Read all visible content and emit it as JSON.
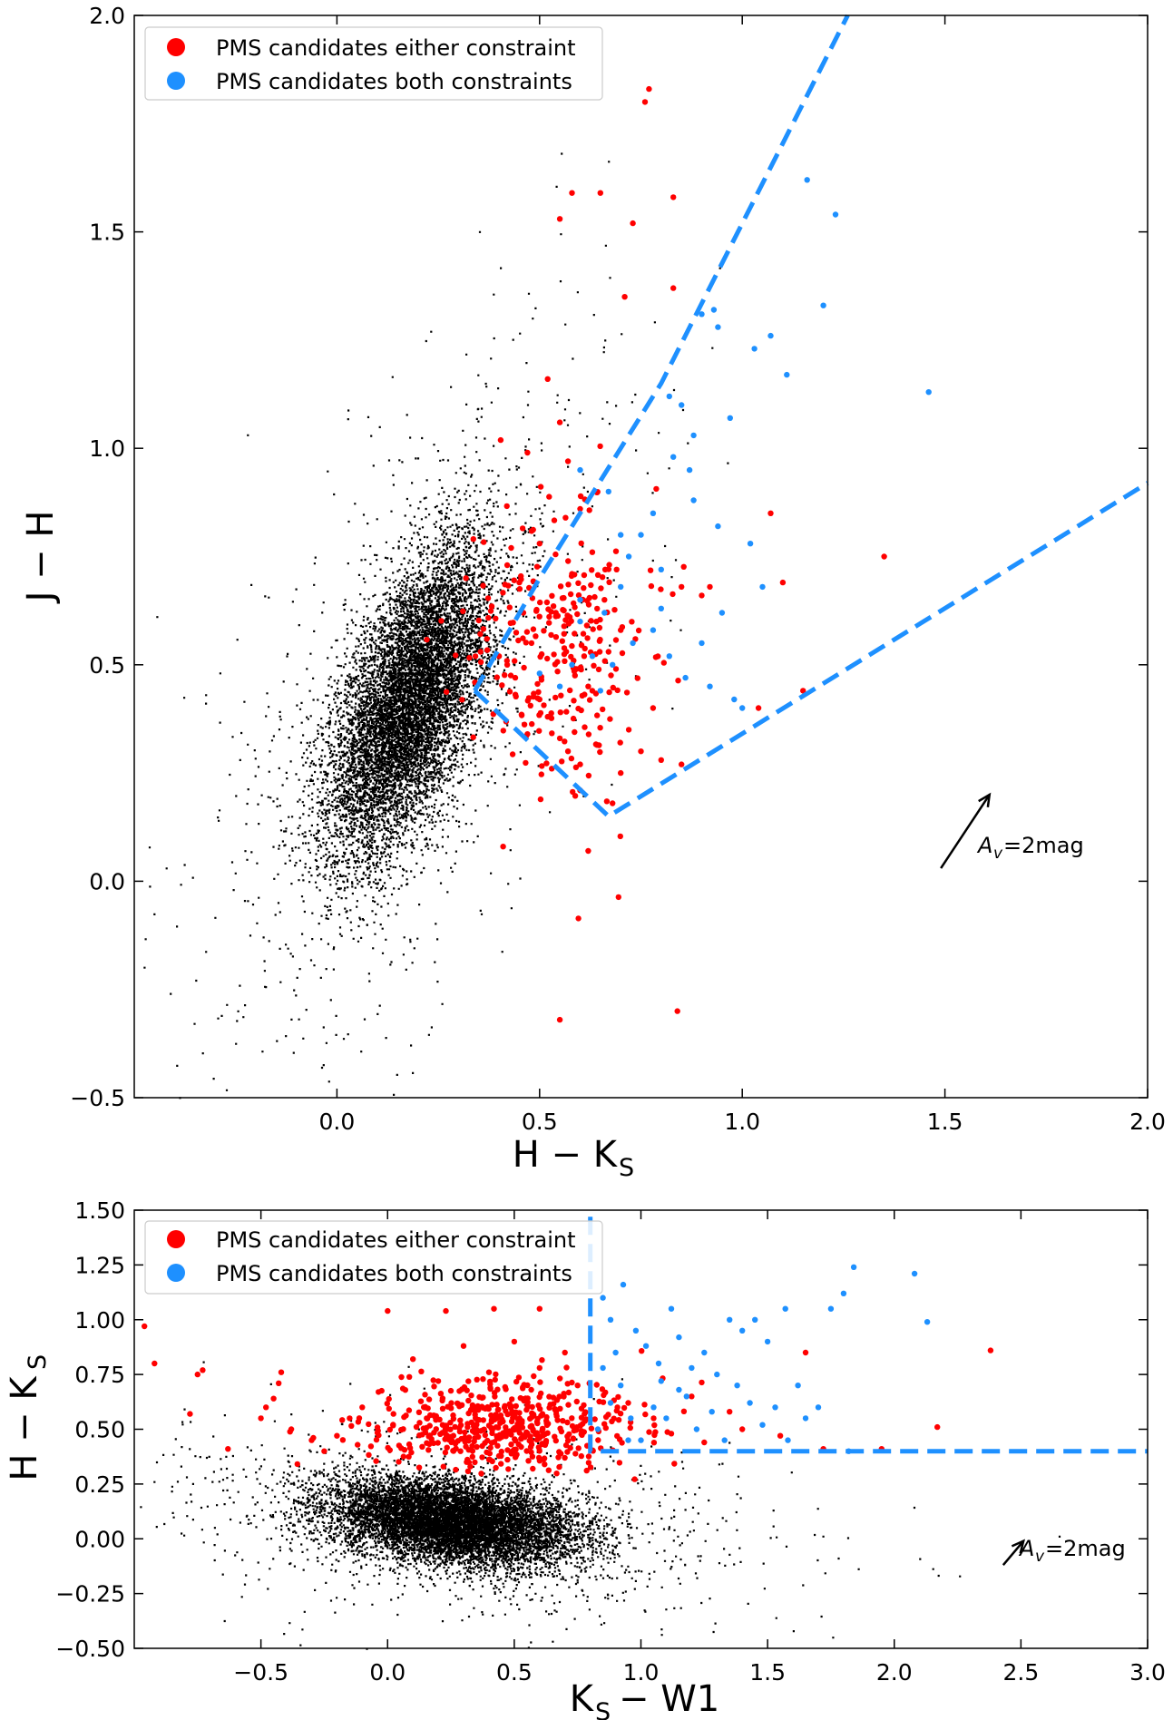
{
  "colors": {
    "background_points": "#000000",
    "either_constraint": "#ff0000",
    "both_constraints": "#1e90ff",
    "boundary": "#1e90ff",
    "axis": "#000000"
  },
  "chart_data": [
    {
      "type": "scatter",
      "id": "top",
      "xlabel": "H − K",
      "xlabel_sub": "S",
      "ylabel": "J − H",
      "ylabel_sub": "",
      "xlim": [
        -0.5,
        2.0
      ],
      "ylim": [
        -0.5,
        2.0
      ],
      "xticks": [
        0.0,
        0.5,
        1.0,
        1.5,
        2.0
      ],
      "xtick_labels": [
        "0.0",
        "0.5",
        "1.0",
        "1.5",
        "2.0"
      ],
      "yticks": [
        -0.5,
        0.0,
        0.5,
        1.0,
        1.5,
        2.0
      ],
      "ytick_labels": [
        "−0.5",
        "0.0",
        "0.5",
        "1.0",
        "1.5",
        "2.0"
      ],
      "legend": {
        "position": "top-left",
        "entries": [
          {
            "label": "PMS candidates either constraint",
            "color": "#ff0000"
          },
          {
            "label": "PMS candidates both constraints",
            "color": "#1e90ff"
          }
        ]
      },
      "background_cloud": {
        "center": [
          0.18,
          0.42
        ],
        "spread": [
          0.1,
          0.18
        ],
        "correlation": 0.6,
        "count": 9000,
        "sparse_count": 900
      },
      "series": [
        {
          "name": "PMS candidates either constraint",
          "color": "#ff0000",
          "points": [
            [
              0.37,
              0.56
            ],
            [
              0.4,
              0.52
            ],
            [
              0.42,
              0.5
            ],
            [
              0.44,
              0.47
            ],
            [
              0.46,
              0.62
            ],
            [
              0.48,
              0.55
            ],
            [
              0.5,
              0.42
            ],
            [
              0.52,
              0.38
            ],
            [
              0.55,
              0.33
            ],
            [
              0.57,
              0.3
            ],
            [
              0.6,
              0.27
            ],
            [
              0.62,
              0.45
            ],
            [
              0.64,
              0.6
            ],
            [
              0.66,
              0.65
            ],
            [
              0.69,
              0.72
            ],
            [
              0.7,
              0.58
            ],
            [
              0.72,
              0.35
            ],
            [
              0.75,
              0.3
            ],
            [
              0.78,
              0.4
            ],
            [
              0.8,
              0.28
            ],
            [
              0.85,
              0.68
            ],
            [
              0.9,
              0.66
            ],
            [
              0.92,
              0.68
            ],
            [
              1.04,
              0.4
            ],
            [
              1.07,
              0.85
            ],
            [
              1.1,
              0.69
            ],
            [
              1.15,
              0.44
            ],
            [
              1.35,
              0.75
            ],
            [
              0.55,
              1.53
            ],
            [
              0.58,
              1.59
            ],
            [
              0.65,
              1.59
            ],
            [
              0.71,
              1.35
            ],
            [
              0.73,
              1.52
            ],
            [
              0.76,
              1.8
            ],
            [
              0.77,
              1.83
            ],
            [
              0.83,
              1.58
            ],
            [
              0.83,
              1.37
            ],
            [
              0.5,
              0.78
            ],
            [
              0.54,
              0.62
            ],
            [
              0.58,
              0.71
            ],
            [
              0.61,
              0.52
            ],
            [
              0.63,
              0.44
            ],
            [
              0.67,
              0.53
            ],
            [
              0.42,
              0.73
            ],
            [
              0.45,
              0.69
            ],
            [
              0.47,
              0.34
            ],
            [
              0.53,
              0.26
            ],
            [
              0.6,
              0.21
            ],
            [
              0.68,
              0.18
            ],
            [
              0.7,
              0.25
            ],
            [
              0.85,
              0.27
            ],
            [
              0.62,
              0.07
            ],
            [
              0.84,
              -0.3
            ],
            [
              0.55,
              -0.32
            ],
            [
              0.41,
              0.08
            ],
            [
              0.43,
              0.77
            ],
            [
              0.52,
              1.16
            ],
            [
              0.55,
              1.06
            ],
            [
              0.57,
              0.97
            ],
            [
              0.47,
              0.99
            ],
            [
              0.6,
              0.86
            ],
            [
              0.63,
              0.76
            ]
          ],
          "cluster": {
            "center": [
              0.55,
              0.55
            ],
            "spread": [
              0.11,
              0.16
            ],
            "count": 260
          }
        },
        {
          "name": "PMS candidates both constraints",
          "color": "#1e90ff",
          "points": [
            [
              0.82,
              1.12
            ],
            [
              0.85,
              1.1
            ],
            [
              0.88,
              1.03
            ],
            [
              0.9,
              1.31
            ],
            [
              0.93,
              1.32
            ],
            [
              0.94,
              1.28
            ],
            [
              0.97,
              1.07
            ],
            [
              1.03,
              1.23
            ],
            [
              1.07,
              1.26
            ],
            [
              1.11,
              1.17
            ],
            [
              1.2,
              1.33
            ],
            [
              1.23,
              1.54
            ],
            [
              1.16,
              1.62
            ],
            [
              1.46,
              1.13
            ],
            [
              0.83,
              0.98
            ],
            [
              0.87,
              0.95
            ],
            [
              1.02,
              0.78
            ],
            [
              1.05,
              0.68
            ],
            [
              1.0,
              0.4
            ],
            [
              0.9,
              0.55
            ],
            [
              0.95,
              0.62
            ],
            [
              0.75,
              0.8
            ],
            [
              0.8,
              0.72
            ],
            [
              0.7,
              0.68
            ],
            [
              0.72,
              0.75
            ],
            [
              0.66,
              0.62
            ],
            [
              0.78,
              0.58
            ],
            [
              0.58,
              0.5
            ],
            [
              0.6,
              0.6
            ],
            [
              0.55,
              0.45
            ],
            [
              0.5,
              0.48
            ],
            [
              0.63,
              0.52
            ],
            [
              0.68,
              0.5
            ],
            [
              0.73,
              0.55
            ],
            [
              0.82,
              0.52
            ],
            [
              0.86,
              0.47
            ],
            [
              0.92,
              0.45
            ],
            [
              0.98,
              0.42
            ],
            [
              0.65,
              0.44
            ],
            [
              0.6,
              0.65
            ],
            [
              0.7,
              0.8
            ],
            [
              0.78,
              0.85
            ],
            [
              0.6,
              0.95
            ],
            [
              0.67,
              0.9
            ],
            [
              0.88,
              0.88
            ],
            [
              0.94,
              0.82
            ],
            [
              0.8,
              0.63
            ]
          ]
        }
      ],
      "boundary_lines": [
        {
          "x": [
            0.34,
            0.5,
            0.8,
            1.26
          ],
          "y": [
            0.44,
            0.7,
            1.15,
            2.0
          ]
        },
        {
          "x": [
            0.34,
            0.67,
            2.0
          ],
          "y": [
            0.44,
            0.15,
            0.92
          ]
        }
      ],
      "extinction_vector": {
        "label": "A",
        "label_sub": "v",
        "label_rest": "=2mag",
        "from": [
          1.49,
          0.03
        ],
        "to": [
          1.61,
          0.2
        ]
      }
    },
    {
      "type": "scatter",
      "id": "bottom",
      "xlabel": "K",
      "xlabel_sub": "S",
      "xlabel_rest": " − W1",
      "ylabel": "H − K",
      "ylabel_sub": "S",
      "xlim": [
        -1.0,
        3.0
      ],
      "ylim": [
        -0.5,
        1.5
      ],
      "xticks": [
        -0.5,
        0.0,
        0.5,
        1.0,
        1.5,
        2.0,
        2.5,
        3.0
      ],
      "xtick_labels": [
        "−0.5",
        "0.0",
        "0.5",
        "1.0",
        "1.5",
        "2.0",
        "2.5",
        "3.0"
      ],
      "yticks": [
        -0.5,
        -0.25,
        0.0,
        0.25,
        0.5,
        0.75,
        1.0,
        1.25,
        1.5
      ],
      "ytick_labels": [
        "−0.50",
        "−0.25",
        "0.00",
        "0.25",
        "0.50",
        "0.75",
        "1.00",
        "1.25",
        "1.50"
      ],
      "legend": {
        "position": "top-left",
        "entries": [
          {
            "label": "PMS candidates either constraint",
            "color": "#ff0000"
          },
          {
            "label": "PMS candidates both constraints",
            "color": "#1e90ff"
          }
        ]
      },
      "background_cloud": {
        "center": [
          0.25,
          0.08
        ],
        "spread": [
          0.25,
          0.1
        ],
        "correlation": -0.3,
        "count": 9000,
        "sparse_count": 900
      },
      "series": [
        {
          "name": "PMS candidates either constraint",
          "color": "#ff0000",
          "points": [
            [
              -0.96,
              0.97
            ],
            [
              -0.92,
              0.8
            ],
            [
              -0.78,
              0.57
            ],
            [
              -0.75,
              0.75
            ],
            [
              -0.73,
              0.77
            ],
            [
              -0.63,
              0.41
            ],
            [
              -0.5,
              0.55
            ],
            [
              -0.48,
              0.6
            ],
            [
              -0.45,
              0.64
            ],
            [
              -0.43,
              0.71
            ],
            [
              -0.42,
              0.76
            ],
            [
              -0.38,
              0.5
            ],
            [
              -0.3,
              0.45
            ],
            [
              -0.25,
              0.4
            ],
            [
              -0.2,
              0.47
            ],
            [
              -0.15,
              0.55
            ],
            [
              -0.1,
              0.6
            ],
            [
              0.0,
              1.04
            ],
            [
              0.23,
              1.04
            ],
            [
              0.42,
              1.05
            ],
            [
              0.6,
              1.05
            ],
            [
              1.65,
              0.85
            ],
            [
              2.38,
              0.86
            ],
            [
              2.17,
              0.51
            ],
            [
              1.2,
              0.65
            ],
            [
              1.35,
              0.58
            ],
            [
              1.4,
              0.5
            ],
            [
              1.55,
              0.47
            ],
            [
              1.72,
              0.41
            ],
            [
              1.95,
              0.41
            ],
            [
              0.1,
              0.82
            ],
            [
              0.3,
              0.88
            ],
            [
              0.5,
              0.9
            ],
            [
              0.7,
              0.85
            ],
            [
              0.2,
              0.72
            ],
            [
              0.4,
              0.76
            ],
            [
              0.6,
              0.78
            ],
            [
              0.75,
              0.7
            ],
            [
              0.95,
              0.62
            ],
            [
              1.05,
              0.55
            ],
            [
              1.12,
              0.48
            ],
            [
              1.25,
              0.44
            ]
          ],
          "cluster": {
            "center": [
              0.45,
              0.52
            ],
            "spread": [
              0.28,
              0.1
            ],
            "count": 520
          }
        },
        {
          "name": "PMS candidates both constraints",
          "color": "#1e90ff",
          "points": [
            [
              0.85,
              1.1
            ],
            [
              0.88,
              1.0
            ],
            [
              0.93,
              1.16
            ],
            [
              0.98,
              0.95
            ],
            [
              1.02,
              0.88
            ],
            [
              1.07,
              0.8
            ],
            [
              1.12,
              1.05
            ],
            [
              1.15,
              0.92
            ],
            [
              1.2,
              0.78
            ],
            [
              1.25,
              0.85
            ],
            [
              1.3,
              0.75
            ],
            [
              1.35,
              1.0
            ],
            [
              1.4,
              0.95
            ],
            [
              1.45,
              1.0
            ],
            [
              1.5,
              0.9
            ],
            [
              1.57,
              1.05
            ],
            [
              1.62,
              0.7
            ],
            [
              1.75,
              1.05
            ],
            [
              1.8,
              1.12
            ],
            [
              1.84,
              1.24
            ],
            [
              2.08,
              1.21
            ],
            [
              2.13,
              0.99
            ],
            [
              1.05,
              0.6
            ],
            [
              1.1,
              0.55
            ],
            [
              1.18,
              0.65
            ],
            [
              1.22,
              0.5
            ],
            [
              1.28,
              0.58
            ],
            [
              1.33,
              0.45
            ],
            [
              1.38,
              0.7
            ],
            [
              1.43,
              0.62
            ],
            [
              1.48,
              0.52
            ],
            [
              1.53,
              0.6
            ],
            [
              1.58,
              0.45
            ],
            [
              0.83,
              0.5
            ],
            [
              0.88,
              0.62
            ],
            [
              0.92,
              0.7
            ],
            [
              0.96,
              0.55
            ],
            [
              1.0,
              0.45
            ],
            [
              0.85,
              0.78
            ],
            [
              0.9,
              0.85
            ],
            [
              0.95,
              0.45
            ],
            [
              1.08,
              0.72
            ],
            [
              1.15,
              0.68
            ],
            [
              1.65,
              0.55
            ],
            [
              1.7,
              0.6
            ],
            [
              1.82,
              0.4
            ]
          ]
        }
      ],
      "boundary_lines": [
        {
          "x": [
            0.8,
            0.8,
            3.0
          ],
          "y": [
            1.47,
            0.4,
            0.4
          ]
        }
      ],
      "extinction_vector": {
        "label": "A",
        "label_sub": "v",
        "label_rest": "=2mag",
        "from": [
          2.43,
          -0.12
        ],
        "to": [
          2.51,
          -0.01
        ]
      }
    }
  ]
}
